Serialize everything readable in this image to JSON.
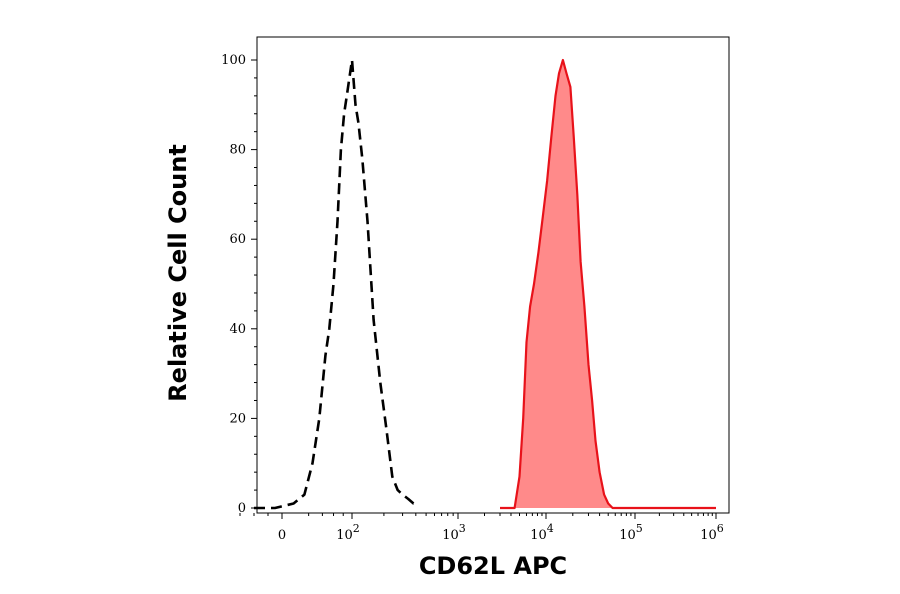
{
  "chart_data": {
    "type": "area",
    "title": "",
    "xlabel": "CD62L APC",
    "ylabel": "Relative Cell Count",
    "x_scale": "logicle",
    "x_ticks": [
      {
        "value": 0,
        "base": "0",
        "exp": ""
      },
      {
        "value": 100,
        "base": "10",
        "exp": "2"
      },
      {
        "value": 1000,
        "base": "10",
        "exp": "3"
      },
      {
        "value": 10000,
        "base": "10",
        "exp": "4"
      },
      {
        "value": 100000,
        "base": "10",
        "exp": "5"
      },
      {
        "value": 1000000,
        "base": "10",
        "exp": "6"
      }
    ],
    "y_ticks": [
      "0",
      "20",
      "40",
      "60",
      "80",
      "100"
    ],
    "ylim": [
      0,
      100
    ],
    "grid": false,
    "legend": "none",
    "series": [
      {
        "style": "dashed",
        "color": "#000000",
        "fill": "none",
        "points": [
          [
            -40,
            0
          ],
          [
            -10,
            0
          ],
          [
            5,
            1
          ],
          [
            15,
            3
          ],
          [
            25,
            10
          ],
          [
            35,
            20
          ],
          [
            45,
            34
          ],
          [
            52,
            40
          ],
          [
            60,
            50
          ],
          [
            68,
            64
          ],
          [
            75,
            80
          ],
          [
            82,
            88
          ],
          [
            88,
            92
          ],
          [
            94,
            96
          ],
          [
            100,
            100
          ],
          [
            108,
            90
          ],
          [
            115,
            86
          ],
          [
            125,
            78
          ],
          [
            140,
            64
          ],
          [
            160,
            42
          ],
          [
            185,
            28
          ],
          [
            210,
            18
          ],
          [
            240,
            7
          ],
          [
            270,
            4
          ],
          [
            300,
            3
          ],
          [
            340,
            2
          ],
          [
            380,
            1
          ],
          [
            420,
            1
          ]
        ]
      },
      {
        "style": "solid",
        "color": "#e8121a",
        "fill": "#ff8a8a",
        "points": [
          [
            3000,
            0
          ],
          [
            4400,
            0
          ],
          [
            5000,
            7
          ],
          [
            5500,
            20
          ],
          [
            6000,
            37
          ],
          [
            6600,
            45
          ],
          [
            7300,
            50
          ],
          [
            8200,
            57
          ],
          [
            9200,
            65
          ],
          [
            10300,
            73
          ],
          [
            11500,
            83
          ],
          [
            12800,
            92
          ],
          [
            14000,
            97
          ],
          [
            15500,
            100
          ],
          [
            17000,
            97
          ],
          [
            18800,
            94
          ],
          [
            20500,
            83
          ],
          [
            22500,
            70
          ],
          [
            24500,
            55
          ],
          [
            27000,
            45
          ],
          [
            30000,
            32
          ],
          [
            33000,
            24
          ],
          [
            36000,
            15
          ],
          [
            40000,
            8
          ],
          [
            45000,
            3
          ],
          [
            50000,
            1
          ],
          [
            56000,
            0
          ],
          [
            100000,
            0
          ],
          [
            1000000,
            0
          ]
        ]
      }
    ]
  }
}
